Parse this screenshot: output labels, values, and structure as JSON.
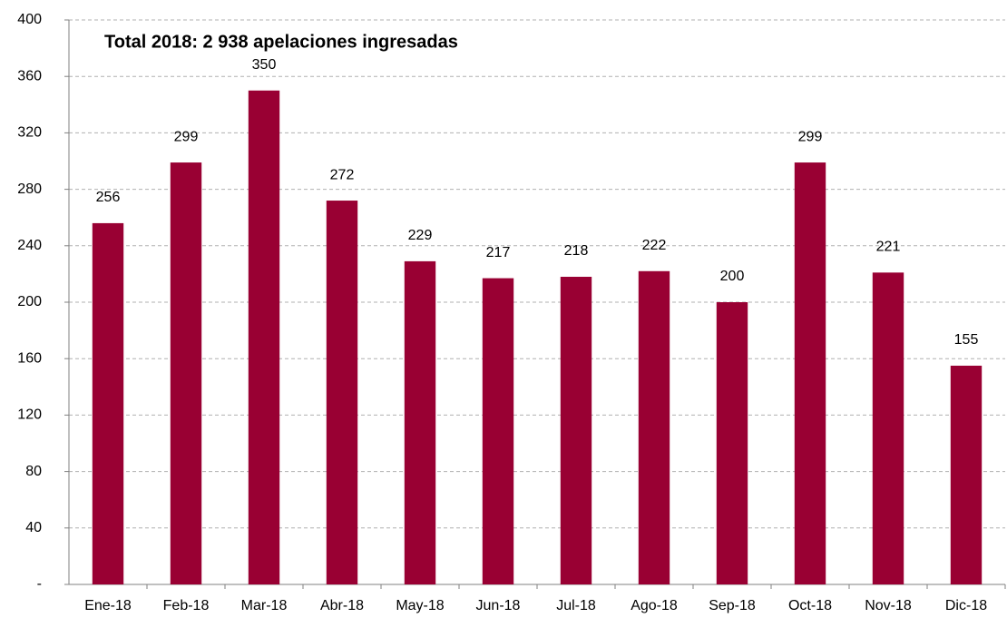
{
  "chart_data": {
    "type": "bar",
    "title": "Total 2018: 2 938 apelaciones ingresadas",
    "categories": [
      "Ene-18",
      "Feb-18",
      "Mar-18",
      "Abr-18",
      "May-18",
      "Jun-18",
      "Jul-18",
      "Ago-18",
      "Sep-18",
      "Oct-18",
      "Nov-18",
      "Dic-18"
    ],
    "values": [
      256,
      299,
      350,
      272,
      229,
      217,
      218,
      222,
      200,
      299,
      221,
      155
    ],
    "color": "#990033",
    "ylim": [
      0,
      400
    ],
    "yticks": [
      {
        "value": 0,
        "label": "-"
      },
      40,
      80,
      120,
      160,
      200,
      240,
      280,
      320,
      360,
      400
    ],
    "grid": true
  }
}
